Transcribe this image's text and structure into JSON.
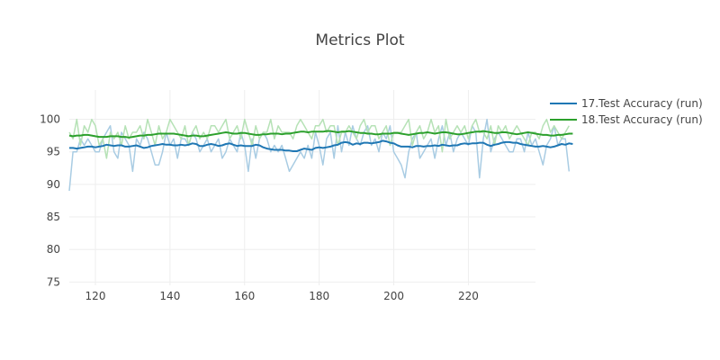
{
  "chart_data": {
    "type": "line",
    "title": "Metrics Plot",
    "xlabel": "",
    "ylabel": "",
    "xlim": [
      113,
      238
    ],
    "ylim": [
      74.5,
      104.5
    ],
    "x_ticks": [
      120,
      140,
      160,
      180,
      200,
      220
    ],
    "y_ticks": [
      75,
      80,
      85,
      90,
      95,
      100
    ],
    "grid": true,
    "legend_position": "top-right",
    "series": [
      {
        "name": "17.Test Accuracy (run)",
        "color": "#1f77b4",
        "raw_color": "#a9cce3",
        "x_start": 113,
        "smoothed": [
          95.6,
          95.6,
          95.5,
          95.6,
          95.7,
          95.8,
          95.8,
          95.7,
          95.8,
          95.9,
          96.1,
          96.0,
          95.9,
          96.0,
          96.0,
          95.8,
          95.8,
          95.9,
          96.0,
          95.8,
          95.6,
          95.7,
          95.9,
          96.0,
          96.1,
          96.2,
          96.1,
          96.1,
          96.0,
          96.0,
          96.1,
          96.0,
          96.1,
          96.3,
          96.2,
          95.9,
          95.9,
          96.1,
          96.2,
          96.1,
          95.9,
          96.0,
          96.2,
          96.3,
          96.1,
          95.9,
          96.0,
          95.9,
          95.9,
          95.9,
          96.1,
          96.0,
          95.7,
          95.5,
          95.4,
          95.3,
          95.3,
          95.3,
          95.2,
          95.2,
          95.1,
          95.1,
          95.3,
          95.5,
          95.4,
          95.3,
          95.6,
          95.7,
          95.6,
          95.7,
          95.8,
          96.0,
          96.1,
          96.4,
          96.5,
          96.4,
          96.1,
          96.3,
          96.2,
          96.4,
          96.4,
          96.3,
          96.4,
          96.5,
          96.7,
          96.6,
          96.4,
          96.3,
          96.0,
          95.8,
          95.8,
          95.8,
          95.7,
          95.9,
          95.9,
          95.8,
          95.9,
          95.9,
          96.0,
          95.9,
          96.1,
          96.0,
          95.9,
          96.0,
          96.0,
          96.2,
          96.3,
          96.2,
          96.3,
          96.3,
          96.4,
          96.4,
          96.1,
          95.9,
          96.1,
          96.2,
          96.4,
          96.5,
          96.5,
          96.4,
          96.4,
          96.2,
          96.1,
          96.0,
          95.9,
          95.8,
          95.8,
          95.9,
          95.8,
          95.7,
          95.8,
          96.0,
          96.2,
          96.1,
          96.3,
          96.2
        ],
        "raw": [
          89,
          95,
          95,
          97,
          96,
          97,
          96,
          95,
          95,
          97,
          98,
          99,
          95,
          94,
          98,
          97,
          96,
          92,
          97,
          96,
          98,
          97,
          95,
          93,
          93,
          95,
          98,
          96,
          97,
          94,
          97,
          97,
          96,
          98,
          97,
          95,
          96,
          97,
          95,
          96,
          97,
          94,
          95,
          97,
          96,
          95,
          98,
          96,
          92,
          97,
          94,
          97,
          98,
          97,
          95,
          96,
          95,
          96,
          94,
          92,
          93,
          94,
          95,
          94,
          96,
          94,
          98,
          96,
          93,
          97,
          98,
          94,
          99,
          95,
          98,
          96,
          99,
          97,
          96,
          98,
          99,
          96,
          97,
          95,
          98,
          97,
          99,
          95,
          94,
          93,
          91,
          95,
          97,
          98,
          94,
          95,
          96,
          97,
          94,
          97,
          99,
          96,
          98,
          95,
          97,
          98,
          97,
          96,
          99,
          98,
          91,
          97,
          100,
          95,
          97,
          98,
          97,
          96,
          95,
          95,
          97,
          97,
          95,
          98,
          96,
          97,
          95,
          93,
          96,
          97,
          99,
          96,
          97,
          97,
          92
        ]
      },
      {
        "name": "18.Test Accuracy (run)",
        "color": "#2ca02c",
        "raw_color": "#b6e2b6",
        "x_start": 113,
        "smoothed": [
          97.5,
          97.4,
          97.5,
          97.5,
          97.6,
          97.6,
          97.5,
          97.4,
          97.3,
          97.3,
          97.3,
          97.4,
          97.4,
          97.4,
          97.3,
          97.3,
          97.2,
          97.3,
          97.4,
          97.5,
          97.5,
          97.6,
          97.6,
          97.7,
          97.8,
          97.8,
          97.8,
          97.8,
          97.8,
          97.7,
          97.6,
          97.5,
          97.4,
          97.5,
          97.5,
          97.4,
          97.4,
          97.5,
          97.6,
          97.7,
          97.8,
          97.9,
          98.0,
          97.9,
          97.8,
          97.8,
          97.9,
          97.9,
          97.8,
          97.7,
          97.6,
          97.6,
          97.7,
          97.7,
          97.8,
          97.8,
          97.8,
          97.7,
          97.8,
          97.8,
          97.9,
          98.0,
          98.1,
          98.1,
          98.0,
          98.1,
          98.1,
          98.1,
          98.1,
          98.2,
          98.2,
          98.1,
          98.0,
          98.1,
          98.1,
          98.2,
          98.1,
          98.0,
          97.9,
          97.9,
          97.8,
          97.8,
          97.7,
          97.7,
          97.8,
          97.8,
          97.8,
          97.9,
          97.9,
          97.8,
          97.7,
          97.6,
          97.7,
          97.8,
          97.9,
          97.9,
          98.0,
          97.9,
          97.8,
          97.9,
          98.0,
          98.0,
          97.9,
          97.8,
          97.7,
          97.7,
          97.8,
          97.9,
          98.0,
          98.1,
          98.1,
          98.2,
          98.1,
          98.0,
          97.9,
          97.9,
          98.0,
          98.0,
          97.9,
          97.8,
          97.7,
          97.8,
          97.9,
          98.0,
          97.9,
          97.8,
          97.7,
          97.6,
          97.6,
          97.5,
          97.5,
          97.6,
          97.6,
          97.7,
          97.8,
          97.8
        ],
        "raw": [
          98,
          97,
          100,
          96,
          99,
          98,
          100,
          99,
          96,
          97,
          94,
          98,
          97,
          98,
          96,
          99,
          97,
          98,
          98,
          99,
          97,
          100,
          98,
          96,
          99,
          97,
          98,
          100,
          99,
          98,
          97,
          99,
          96,
          98,
          99,
          97,
          98,
          97,
          99,
          99,
          98,
          99,
          100,
          97,
          98,
          99,
          97,
          100,
          98,
          96,
          99,
          97,
          98,
          98,
          100,
          97,
          99,
          98,
          98,
          98,
          97,
          99,
          100,
          99,
          98,
          97,
          99,
          99,
          100,
          98,
          99,
          99,
          96,
          98,
          98,
          99,
          98,
          97,
          99,
          100,
          98,
          99,
          99,
          97,
          98,
          99,
          96,
          98,
          98,
          98,
          99,
          100,
          96,
          98,
          99,
          97,
          98,
          100,
          98,
          99,
          95,
          100,
          97,
          98,
          99,
          98,
          99,
          97,
          99,
          100,
          98,
          98,
          97,
          99,
          96,
          99,
          98,
          99,
          97,
          98,
          99,
          98,
          97,
          96,
          98,
          98,
          97,
          99,
          100,
          98,
          99,
          98,
          97,
          98,
          99
        ]
      }
    ]
  }
}
